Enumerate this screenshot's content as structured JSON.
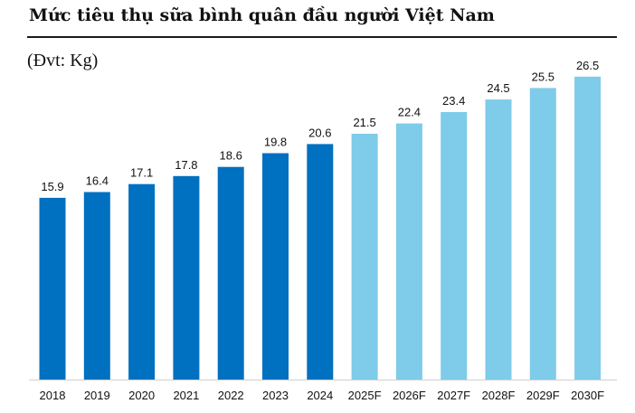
{
  "title": "Mức tiêu thụ sữa bình quân đầu người Việt Nam",
  "unit_label": "(Đvt: Kg)",
  "chart_data": {
    "type": "bar",
    "title": "Mức tiêu thụ sữa bình quân đầu người Việt Nam",
    "ylabel": "(Đvt: Kg)",
    "xlabel": "",
    "categories": [
      "2018",
      "2019",
      "2020",
      "2021",
      "2022",
      "2023",
      "2024",
      "2025F",
      "2026F",
      "2027F",
      "2028F",
      "2029F",
      "2030F"
    ],
    "values": [
      15.9,
      16.4,
      17.1,
      17.8,
      18.6,
      19.8,
      20.6,
      21.5,
      22.4,
      23.4,
      24.5,
      25.5,
      26.5
    ],
    "value_labels": [
      "15.9",
      "16.4",
      "17.1",
      "17.8",
      "18.6",
      "19.8",
      "20.6",
      "21.5",
      "22.4",
      "23.4",
      "24.5",
      "25.5",
      "26.5"
    ],
    "bar_colors": [
      "#0070c0",
      "#0070c0",
      "#0070c0",
      "#0070c0",
      "#0070c0",
      "#0070c0",
      "#0070c0",
      "#7ecbea",
      "#7ecbea",
      "#7ecbea",
      "#7ecbea",
      "#7ecbea",
      "#7ecbea"
    ],
    "axis_color": "#d0d0d0",
    "grid": false,
    "legend": "none"
  }
}
